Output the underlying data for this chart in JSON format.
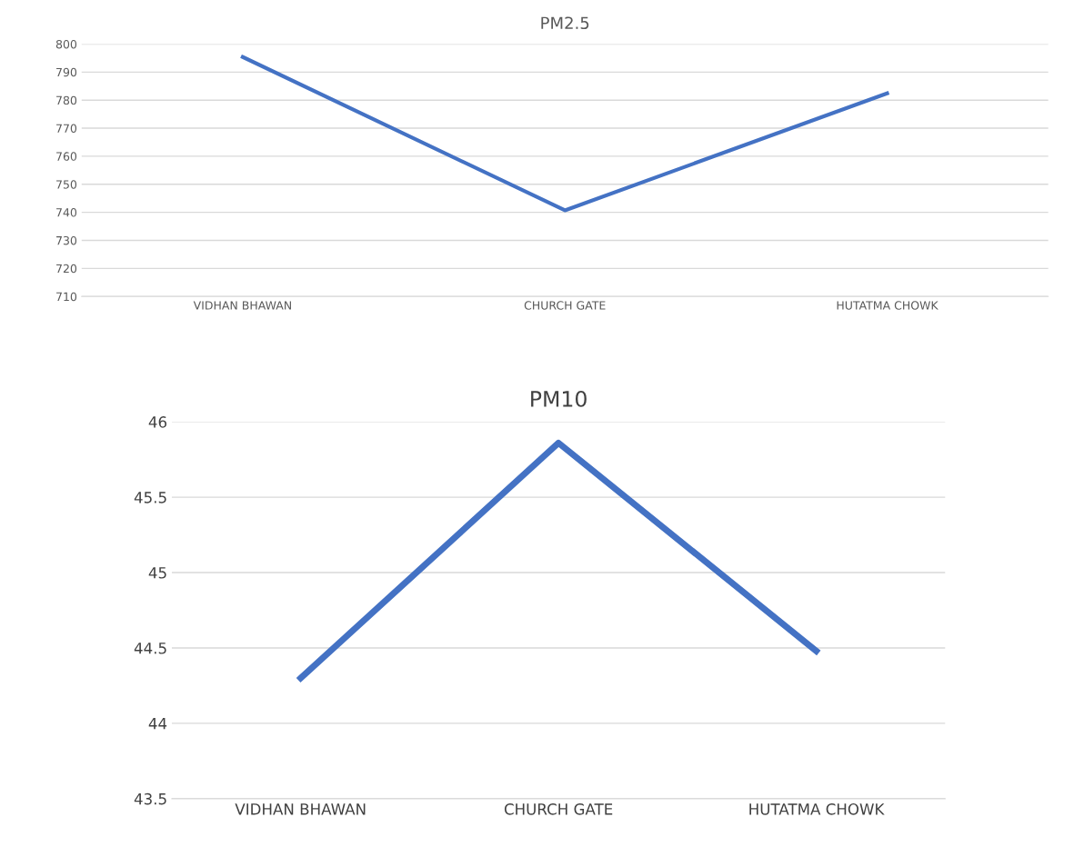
{
  "chart_data": [
    {
      "type": "line",
      "title": "PM2.5",
      "categories": [
        "VIDHAN BHAWAN",
        "CHURCH GATE",
        "HUTATMA CHOWK"
      ],
      "series": [
        {
          "color": "#4472c4",
          "values": [
            795.4,
            740.7,
            782.4
          ]
        }
      ],
      "ylim": [
        710,
        800
      ],
      "yticks": [
        710,
        720,
        730,
        740,
        750,
        760,
        770,
        780,
        790,
        800
      ],
      "grid": "y",
      "marker": "none",
      "line_style": "solid"
    },
    {
      "type": "line",
      "title": "PM10",
      "categories": [
        "VIDHAN BHAWAN",
        "CHURCH GATE",
        "HUTATMA CHOWK"
      ],
      "series": [
        {
          "color": "#4472c4",
          "values": [
            44.3,
            45.86,
            44.48
          ]
        }
      ],
      "ylim": [
        43.5,
        46
      ],
      "yticks": [
        43.5,
        44,
        44.5,
        45,
        45.5,
        46
      ],
      "grid": "y",
      "marker": "none",
      "line_style": "solid"
    }
  ]
}
